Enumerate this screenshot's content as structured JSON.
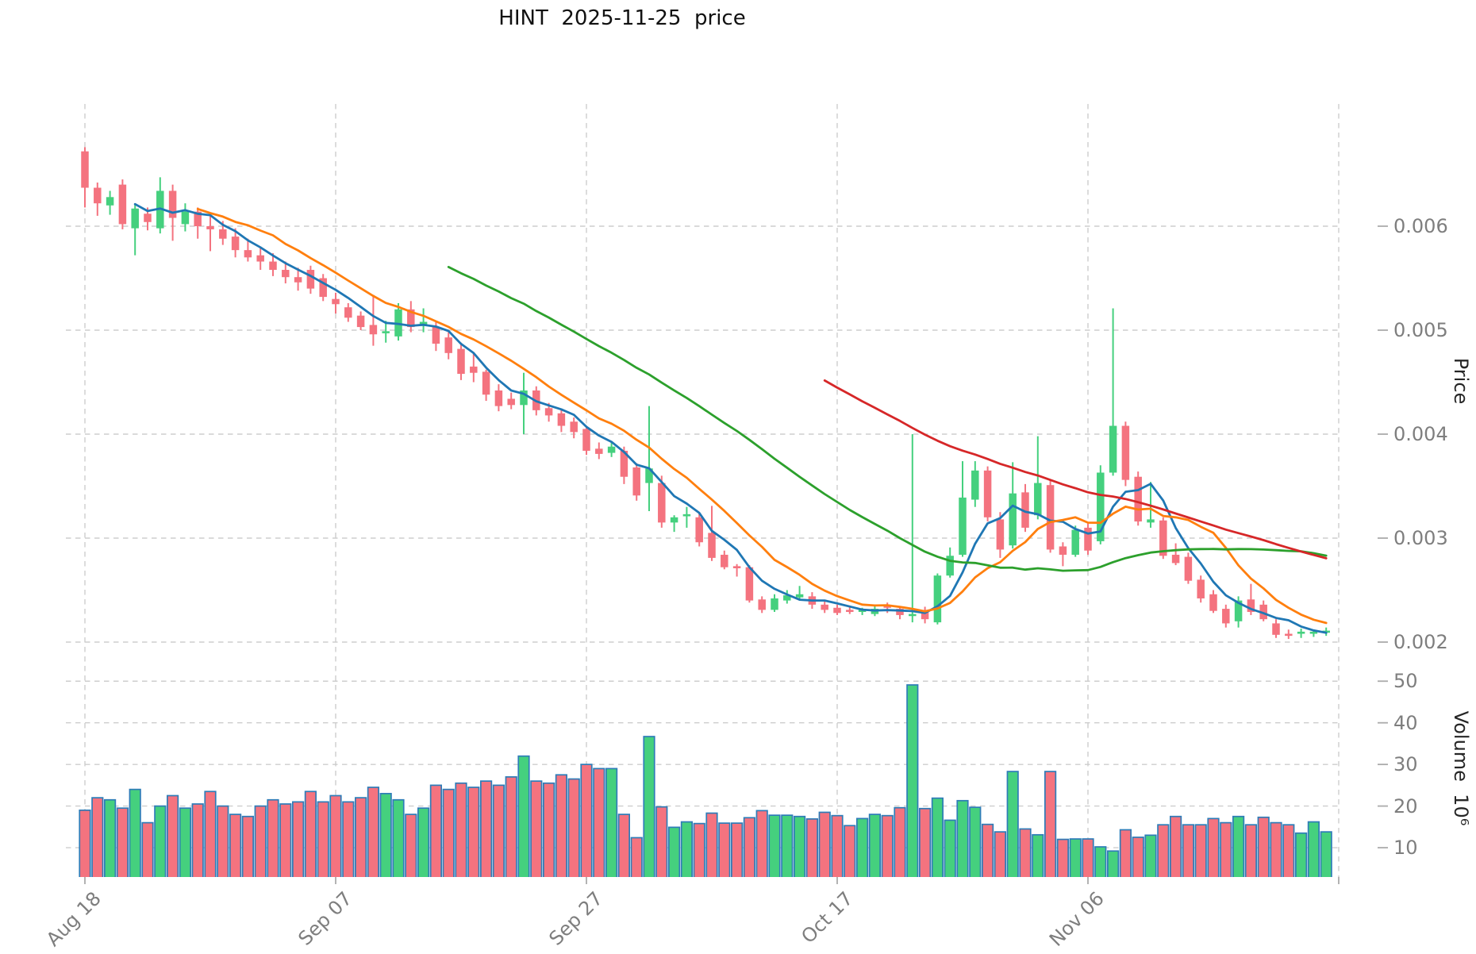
{
  "title": "HINT  2025-11-25  price",
  "axes": {
    "price": {
      "label": "Price",
      "ticks": [
        0.006,
        0.005,
        0.004,
        0.003,
        0.002
      ]
    },
    "volume": {
      "label": "Volume  10⁶",
      "ticks": [
        50,
        40,
        30,
        20,
        10
      ]
    },
    "x": {
      "ticks": [
        {
          "index": 0,
          "label": "Aug 18"
        },
        {
          "index": 20,
          "label": "Sep 07"
        },
        {
          "index": 40,
          "label": "Sep 27"
        },
        {
          "index": 60,
          "label": "Oct 17"
        },
        {
          "index": 80,
          "label": "Nov 06"
        },
        {
          "index": 100,
          "label": ""
        }
      ]
    }
  },
  "chart_data": {
    "type": "candlestick",
    "symbol": "HINT",
    "as_of_date": "2025-11-25",
    "grid": true,
    "price_ylim": [
      0.00186,
      0.00718
    ],
    "volume_ylim_millions": [
      3,
      55
    ],
    "up_color": "#45d07e",
    "down_color": "#f4737f",
    "volume_bar_edge_color": "#2e7cb8",
    "moving_averages": [
      {
        "window": 5,
        "color": "#1f77b4"
      },
      {
        "window": 10,
        "color": "#ff7f0e"
      },
      {
        "window": 30,
        "color": "#2ca02c"
      },
      {
        "window": 60,
        "color": "#d62728"
      }
    ],
    "dates": [
      "2025-08-18",
      "2025-08-19",
      "2025-08-20",
      "2025-08-21",
      "2025-08-22",
      "2025-08-23",
      "2025-08-24",
      "2025-08-25",
      "2025-08-26",
      "2025-08-27",
      "2025-08-28",
      "2025-08-29",
      "2025-08-30",
      "2025-08-31",
      "2025-09-01",
      "2025-09-02",
      "2025-09-03",
      "2025-09-04",
      "2025-09-05",
      "2025-09-06",
      "2025-09-07",
      "2025-09-08",
      "2025-09-09",
      "2025-09-10",
      "2025-09-11",
      "2025-09-12",
      "2025-09-13",
      "2025-09-14",
      "2025-09-15",
      "2025-09-16",
      "2025-09-17",
      "2025-09-18",
      "2025-09-19",
      "2025-09-20",
      "2025-09-21",
      "2025-09-22",
      "2025-09-23",
      "2025-09-24",
      "2025-09-25",
      "2025-09-26",
      "2025-09-27",
      "2025-09-28",
      "2025-09-29",
      "2025-09-30",
      "2025-10-01",
      "2025-10-02",
      "2025-10-03",
      "2025-10-04",
      "2025-10-05",
      "2025-10-06",
      "2025-10-07",
      "2025-10-08",
      "2025-10-09",
      "2025-10-10",
      "2025-10-11",
      "2025-10-12",
      "2025-10-13",
      "2025-10-14",
      "2025-10-15",
      "2025-10-16",
      "2025-10-17",
      "2025-10-18",
      "2025-10-19",
      "2025-10-20",
      "2025-10-21",
      "2025-10-22",
      "2025-10-23",
      "2025-10-24",
      "2025-10-25",
      "2025-10-26",
      "2025-10-27",
      "2025-10-28",
      "2025-10-29",
      "2025-10-30",
      "2025-10-31",
      "2025-11-01",
      "2025-11-02",
      "2025-11-03",
      "2025-11-04",
      "2025-11-05",
      "2025-11-06",
      "2025-11-07",
      "2025-11-08",
      "2025-11-09",
      "2025-11-10",
      "2025-11-11",
      "2025-11-12",
      "2025-11-13",
      "2025-11-14",
      "2025-11-15",
      "2025-11-16",
      "2025-11-17",
      "2025-11-18",
      "2025-11-19",
      "2025-11-20",
      "2025-11-21",
      "2025-11-22",
      "2025-11-23",
      "2025-11-24",
      "2025-11-25"
    ],
    "open": [
      0.00672,
      0.00637,
      0.0062,
      0.0064,
      0.00598,
      0.00612,
      0.00598,
      0.00634,
      0.00602,
      0.00614,
      0.006,
      0.00597,
      0.0059,
      0.00577,
      0.00572,
      0.00566,
      0.00558,
      0.00551,
      0.00558,
      0.0055,
      0.0053,
      0.00522,
      0.00514,
      0.00505,
      0.00497,
      0.00494,
      0.0052,
      0.00504,
      0.00503,
      0.00493,
      0.00482,
      0.00465,
      0.0046,
      0.00442,
      0.00434,
      0.00428,
      0.00442,
      0.00425,
      0.0042,
      0.00412,
      0.00405,
      0.00386,
      0.00382,
      0.00384,
      0.00368,
      0.00353,
      0.00353,
      0.00315,
      0.00321,
      0.0032,
      0.00305,
      0.00284,
      0.00273,
      0.00272,
      0.00241,
      0.00231,
      0.0024,
      0.00243,
      0.00244,
      0.00236,
      0.00233,
      0.00231,
      0.00229,
      0.00227,
      0.00235,
      0.00232,
      0.00226,
      0.0023,
      0.00219,
      0.00264,
      0.00284,
      0.00337,
      0.00365,
      0.00318,
      0.00293,
      0.00344,
      0.00322,
      0.00351,
      0.00292,
      0.00284,
      0.0031,
      0.00297,
      0.00363,
      0.00408,
      0.00359,
      0.00315,
      0.00317,
      0.00284,
      0.00282,
      0.0026,
      0.00246,
      0.00232,
      0.0022,
      0.00241,
      0.00236,
      0.00218,
      0.00208,
      0.00208,
      0.00208,
      0.00209
    ],
    "high": [
      0.00676,
      0.00642,
      0.00634,
      0.00645,
      0.00622,
      0.00618,
      0.00647,
      0.0064,
      0.00622,
      0.00618,
      0.00612,
      0.00605,
      0.00598,
      0.00588,
      0.0058,
      0.00574,
      0.00566,
      0.0056,
      0.00562,
      0.00554,
      0.00536,
      0.00526,
      0.00518,
      0.00534,
      0.00509,
      0.00526,
      0.00528,
      0.00521,
      0.00508,
      0.00498,
      0.00488,
      0.00478,
      0.00462,
      0.00448,
      0.0044,
      0.00459,
      0.00446,
      0.0043,
      0.00424,
      0.00416,
      0.00408,
      0.00392,
      0.00392,
      0.00388,
      0.00372,
      0.00427,
      0.0036,
      0.00322,
      0.0033,
      0.00324,
      0.00331,
      0.00288,
      0.00275,
      0.00274,
      0.00244,
      0.00246,
      0.0025,
      0.00254,
      0.00248,
      0.0024,
      0.00236,
      0.00234,
      0.00233,
      0.00235,
      0.00238,
      0.00234,
      0.004,
      0.00234,
      0.00266,
      0.00291,
      0.00374,
      0.00374,
      0.00369,
      0.00325,
      0.00373,
      0.00352,
      0.00398,
      0.00356,
      0.00296,
      0.00312,
      0.00314,
      0.0037,
      0.00521,
      0.00412,
      0.00364,
      0.00354,
      0.0032,
      0.00295,
      0.00286,
      0.00264,
      0.0025,
      0.00236,
      0.00244,
      0.00256,
      0.0024,
      0.00222,
      0.00212,
      0.00213,
      0.00212,
      0.00214
    ],
    "low": [
      0.00618,
      0.0061,
      0.00611,
      0.00597,
      0.00572,
      0.00596,
      0.00593,
      0.00586,
      0.00595,
      0.00588,
      0.00576,
      0.00582,
      0.0057,
      0.00566,
      0.00558,
      0.00552,
      0.00545,
      0.00538,
      0.00535,
      0.00528,
      0.00516,
      0.00508,
      0.005,
      0.00485,
      0.00488,
      0.0049,
      0.00498,
      0.00498,
      0.0048,
      0.00472,
      0.00452,
      0.0045,
      0.00432,
      0.00422,
      0.00424,
      0.004,
      0.00418,
      0.00412,
      0.00402,
      0.00396,
      0.0038,
      0.00376,
      0.00378,
      0.00352,
      0.00336,
      0.00326,
      0.0031,
      0.00306,
      0.0031,
      0.00292,
      0.00278,
      0.0027,
      0.00263,
      0.00238,
      0.00228,
      0.00229,
      0.00237,
      0.0024,
      0.00232,
      0.00228,
      0.00226,
      0.00227,
      0.00226,
      0.00225,
      0.00228,
      0.00222,
      0.00219,
      0.00218,
      0.00217,
      0.00262,
      0.00282,
      0.0033,
      0.00316,
      0.00281,
      0.0029,
      0.00306,
      0.00318,
      0.00286,
      0.00273,
      0.00282,
      0.00284,
      0.00294,
      0.0036,
      0.0035,
      0.00312,
      0.0031,
      0.0028,
      0.00274,
      0.00256,
      0.00238,
      0.00228,
      0.00214,
      0.00214,
      0.00226,
      0.0022,
      0.00204,
      0.00203,
      0.00204,
      0.00205,
      0.00206
    ],
    "close": [
      0.00637,
      0.00622,
      0.00628,
      0.00602,
      0.00617,
      0.00604,
      0.00634,
      0.00608,
      0.00614,
      0.006,
      0.00597,
      0.00588,
      0.00577,
      0.0057,
      0.00566,
      0.00558,
      0.00551,
      0.00546,
      0.0054,
      0.00532,
      0.00525,
      0.00512,
      0.00503,
      0.00496,
      0.00499,
      0.0052,
      0.00503,
      0.00508,
      0.00487,
      0.00478,
      0.00458,
      0.00459,
      0.00438,
      0.00427,
      0.00428,
      0.00442,
      0.00423,
      0.00418,
      0.00408,
      0.00402,
      0.00384,
      0.00381,
      0.00388,
      0.00359,
      0.00341,
      0.00367,
      0.00315,
      0.0032,
      0.00323,
      0.00296,
      0.00281,
      0.00272,
      0.00271,
      0.0024,
      0.00231,
      0.00242,
      0.00245,
      0.00246,
      0.00236,
      0.00231,
      0.00228,
      0.0023,
      0.00231,
      0.00232,
      0.00233,
      0.00226,
      0.00227,
      0.00222,
      0.00264,
      0.00283,
      0.00339,
      0.00365,
      0.0032,
      0.00289,
      0.00343,
      0.0031,
      0.00353,
      0.00289,
      0.00284,
      0.00308,
      0.00288,
      0.00363,
      0.00408,
      0.00356,
      0.00316,
      0.00318,
      0.00283,
      0.00276,
      0.00259,
      0.00242,
      0.0023,
      0.00218,
      0.0024,
      0.00229,
      0.00222,
      0.00207,
      0.00207,
      0.0021,
      0.0021,
      0.00211
    ],
    "volume_millions": [
      19,
      22,
      21.5,
      19.5,
      24,
      16,
      20,
      22.5,
      19.5,
      20.5,
      23.5,
      20,
      18,
      17.5,
      20,
      21.5,
      20.5,
      21,
      23.5,
      21,
      22.5,
      21,
      22,
      24.5,
      23,
      21.5,
      18,
      19.5,
      25,
      24,
      25.5,
      24.5,
      26,
      25,
      27,
      32,
      26,
      25.5,
      27.5,
      26.5,
      30,
      29,
      29,
      18,
      12.4,
      36.7,
      19.8,
      14.9,
      16.2,
      15.8,
      18.3,
      15.9,
      15.9,
      17.2,
      18.9,
      17.8,
      17.8,
      17.5,
      16.9,
      18.5,
      17.7,
      15.3,
      17,
      18,
      17.7,
      19.6,
      49.1,
      19.4,
      21.9,
      16.6,
      21.3,
      19.7,
      15.6,
      13.8,
      28.3,
      14.5,
      13.1,
      28.3,
      12,
      12.1,
      12.1,
      10.2,
      9.2,
      14.3,
      12.5,
      13,
      15.5,
      17.5,
      15.5,
      15.5,
      17,
      16,
      17.5,
      15.5,
      17.3,
      16,
      15.5,
      13.5,
      16.2,
      13.8
    ]
  }
}
